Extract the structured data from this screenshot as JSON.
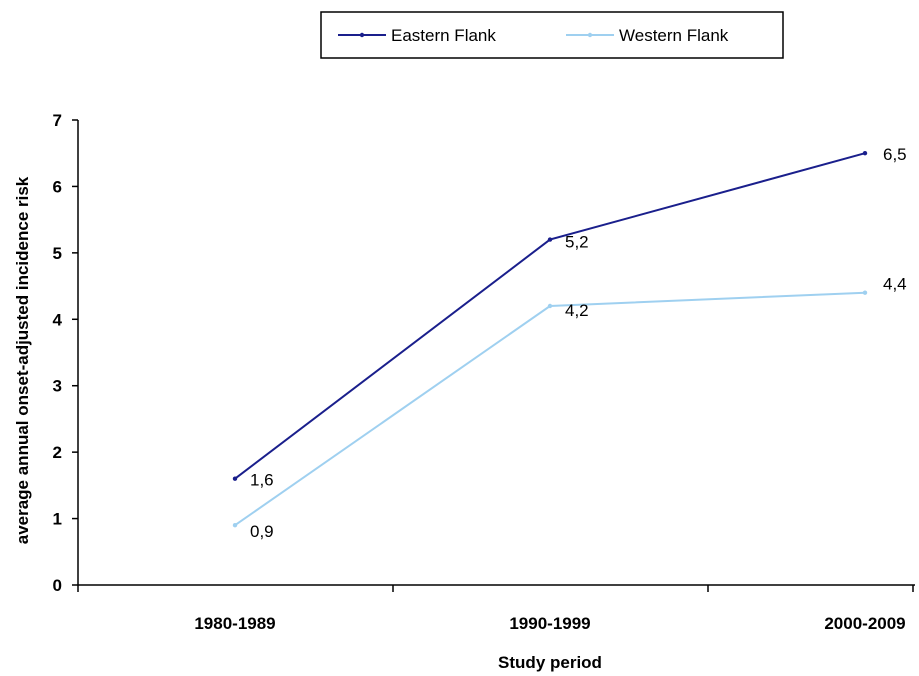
{
  "chart_data": {
    "type": "line",
    "categories": [
      "1980-1989",
      "1990-1999",
      "2000-2009"
    ],
    "series": [
      {
        "name": "Eastern Flank",
        "values": [
          1.6,
          5.2,
          6.5
        ],
        "labels": [
          "1,6",
          "5,2",
          "6,5"
        ],
        "color": "#1a1f8c"
      },
      {
        "name": "Western Flank",
        "values": [
          0.9,
          4.2,
          4.4
        ],
        "labels": [
          "0,9",
          "4,2",
          "4,4"
        ],
        "color": "#9fd0f0"
      }
    ],
    "xlabel": "Study period",
    "ylabel": "average annual onset-adjusted incidence risk",
    "ylim": [
      0,
      7
    ],
    "yticks": [
      0,
      1,
      2,
      3,
      4,
      5,
      6,
      7
    ],
    "grid": false,
    "legend_position": "top-center"
  }
}
